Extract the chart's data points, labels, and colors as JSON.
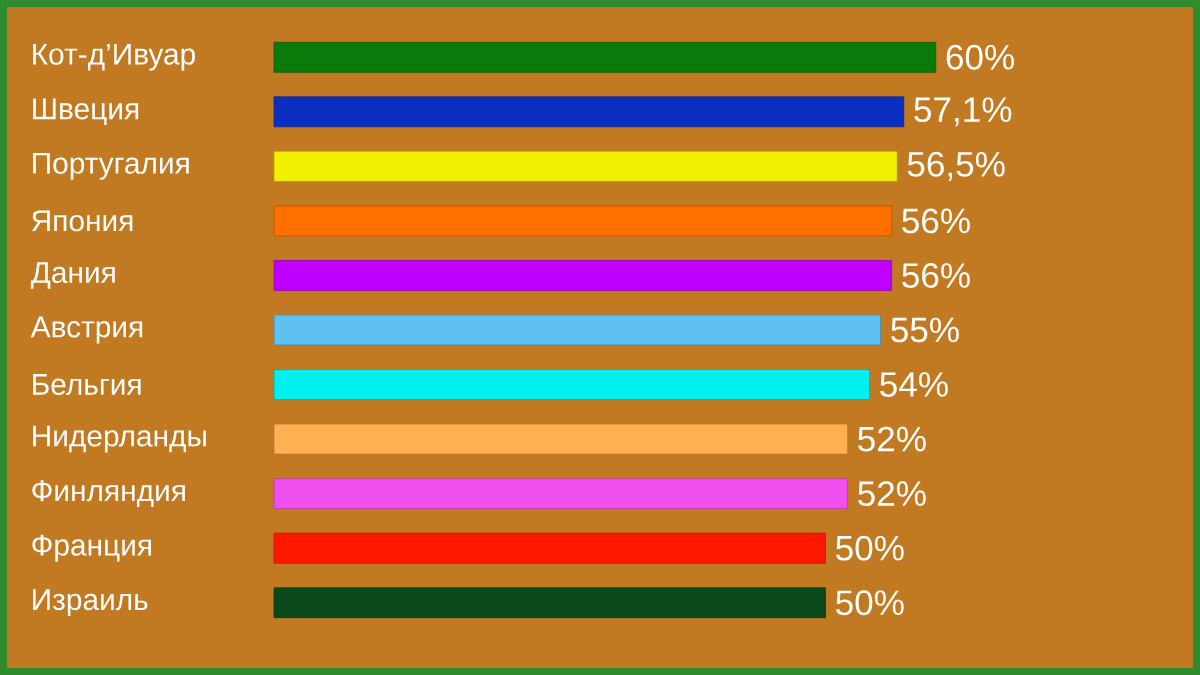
{
  "chart_data": {
    "type": "bar",
    "orientation": "horizontal",
    "tick_labels": "y",
    "categories": [
      "Кот-д’Ивуар",
      "Швеция",
      "Португалия",
      "Япония",
      "Дания",
      "Австрия",
      "Бельгия",
      "Нидерланды",
      "Финляндия",
      "Франция",
      "Израиль"
    ],
    "values": [
      60,
      57.1,
      56.5,
      56,
      56,
      55,
      54,
      52,
      52,
      50,
      50
    ],
    "value_labels": [
      "60%",
      "57,1%",
      "56,5%",
      "56%",
      "56%",
      "55%",
      "54%",
      "52%",
      "52%",
      "50%",
      "50%"
    ],
    "colors": [
      "#0a7a0a",
      "#0a2fc0",
      "#f0f000",
      "#ff7000",
      "#c000ff",
      "#60c0f0",
      "#00f0f0",
      "#ffb050",
      "#f050f0",
      "#ff1800",
      "#0a4a1a"
    ]
  }
}
